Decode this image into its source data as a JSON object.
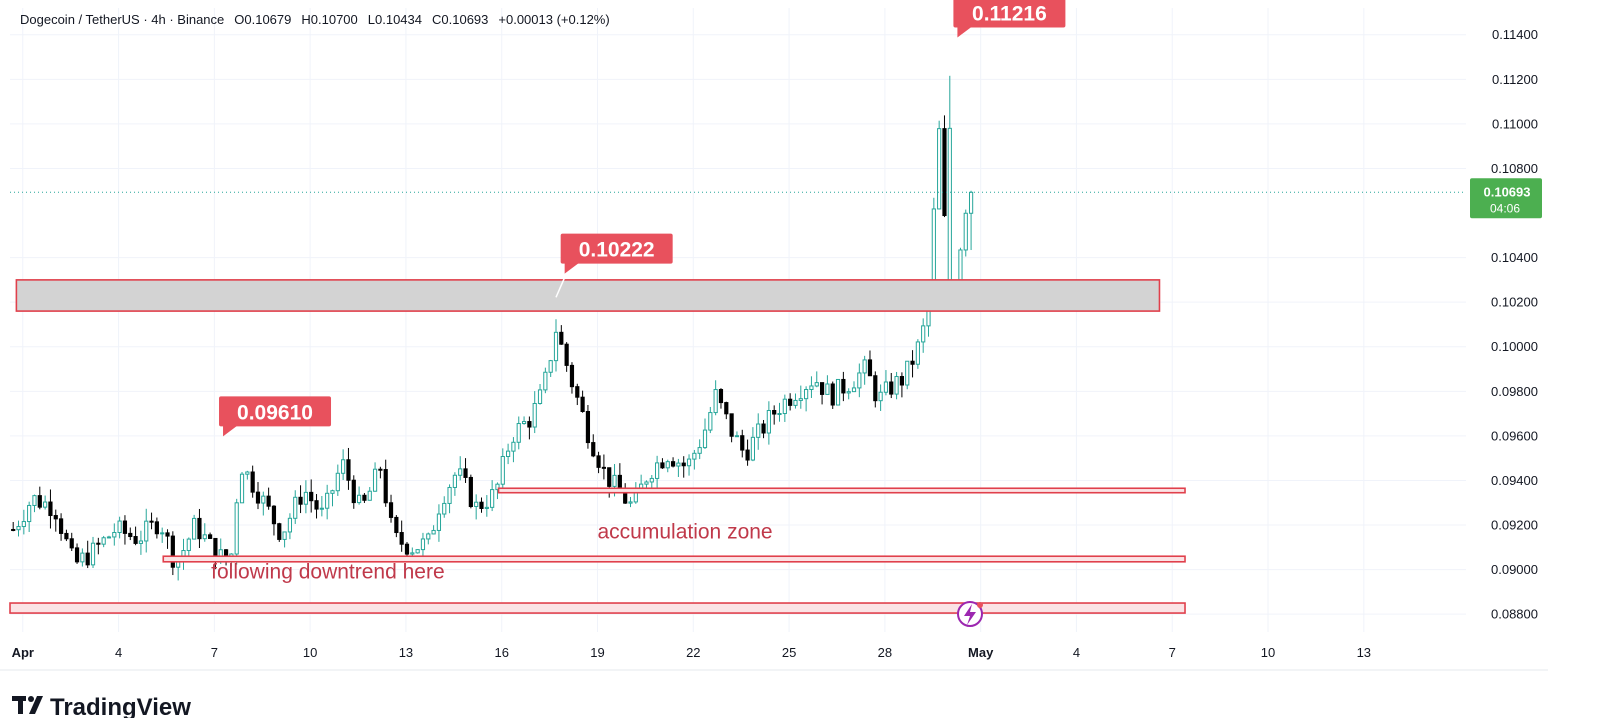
{
  "header": {
    "symbol": "Dogecoin / TetherUS · 4h · Binance",
    "open": "O0.10679",
    "high": "H0.10700",
    "low": "L0.10434",
    "close": "C0.10693",
    "change": "+0.00013 (+0.12%)"
  },
  "logo": {
    "text": "TradingView"
  },
  "price_badge": {
    "price": "0.10693",
    "countdown": "04:06"
  },
  "colors": {
    "up": "#26a69a",
    "down": "#000000",
    "callout": "#e8515d",
    "zone_fill": "#d3d3d3",
    "zone_border": "#e0404c",
    "badge": "#4caf50",
    "text": "#131722",
    "axis_text": "#131722"
  },
  "chart_data": {
    "type": "candlestick",
    "title": "Dogecoin / TetherUS · 4h · Binance",
    "y_ticks": [
      "0.11400",
      "0.11200",
      "0.11000",
      "0.10800",
      "0.10400",
      "0.10200",
      "0.10000",
      "0.09800",
      "0.09600",
      "0.09400",
      "0.09200",
      "0.09000",
      "0.08800"
    ],
    "ylim": [
      0.0872,
      0.1152
    ],
    "x_ticks": [
      {
        "label": "Apr",
        "day": 1
      },
      {
        "label": "4",
        "day": 4
      },
      {
        "label": "7",
        "day": 7
      },
      {
        "label": "10",
        "day": 10
      },
      {
        "label": "13",
        "day": 13
      },
      {
        "label": "16",
        "day": 16
      },
      {
        "label": "19",
        "day": 19
      },
      {
        "label": "22",
        "day": 22
      },
      {
        "label": "25",
        "day": 25
      },
      {
        "label": "28",
        "day": 28
      },
      {
        "label": "May",
        "day": 31
      },
      {
        "label": "4",
        "day": 34
      },
      {
        "label": "7",
        "day": 37
      },
      {
        "label": "10",
        "day": 40
      },
      {
        "label": "13",
        "day": 43
      }
    ],
    "xlim": [
      0.6,
      46.2
    ],
    "grid": true,
    "current_price": 0.10693,
    "candle_path": [
      [
        0.7,
        0.0918
      ],
      [
        1.3,
        0.0932
      ],
      [
        2.0,
        0.0928
      ],
      [
        2.6,
        0.0902
      ],
      [
        3.2,
        0.0908
      ],
      [
        3.9,
        0.0918
      ],
      [
        4.6,
        0.0914
      ],
      [
        5.3,
        0.0922
      ],
      [
        5.8,
        0.0902
      ],
      [
        6.4,
        0.092
      ],
      [
        7.0,
        0.0908
      ],
      [
        7.5,
        0.0902
      ],
      [
        7.8,
        0.0948
      ],
      [
        8.4,
        0.0934
      ],
      [
        9.1,
        0.0916
      ],
      [
        9.8,
        0.0936
      ],
      [
        10.4,
        0.0924
      ],
      [
        11.0,
        0.0948
      ],
      [
        11.6,
        0.0926
      ],
      [
        12.2,
        0.0946
      ],
      [
        12.6,
        0.0914
      ],
      [
        13.2,
        0.091
      ],
      [
        13.7,
        0.0912
      ],
      [
        14.1,
        0.0932
      ],
      [
        14.6,
        0.0944
      ],
      [
        15.2,
        0.0928
      ],
      [
        15.8,
        0.0934
      ],
      [
        16.3,
        0.096
      ],
      [
        16.9,
        0.0968
      ],
      [
        17.3,
        0.098
      ],
      [
        17.7,
        0.1008
      ],
      [
        18.2,
        0.0984
      ],
      [
        18.7,
        0.0962
      ],
      [
        19.2,
        0.0944
      ],
      [
        19.6,
        0.0936
      ],
      [
        20.1,
        0.0928
      ],
      [
        20.6,
        0.0944
      ],
      [
        21.2,
        0.0952
      ],
      [
        21.8,
        0.0946
      ],
      [
        22.3,
        0.096
      ],
      [
        22.7,
        0.0978
      ],
      [
        23.2,
        0.0962
      ],
      [
        23.6,
        0.0952
      ],
      [
        24.1,
        0.0962
      ],
      [
        24.6,
        0.0972
      ],
      [
        25.2,
        0.098
      ],
      [
        25.8,
        0.0986
      ],
      [
        26.3,
        0.0978
      ],
      [
        26.9,
        0.0984
      ],
      [
        27.4,
        0.099
      ],
      [
        27.8,
        0.0976
      ],
      [
        28.2,
        0.0982
      ],
      [
        28.6,
        0.0986
      ],
      [
        29.0,
        0.0998
      ],
      [
        29.3,
        0.1012
      ],
      [
        29.5,
        0.1052
      ],
      [
        29.7,
        0.1096
      ],
      [
        29.9,
        0.1048
      ],
      [
        30.1,
        0.1018
      ],
      [
        30.3,
        0.1038
      ],
      [
        30.5,
        0.1062
      ],
      [
        30.7,
        0.10693
      ]
    ],
    "zones": [
      {
        "kind": "resistance",
        "from_day": 0.8,
        "to_day": 36.6,
        "low": 0.1016,
        "high": 0.103
      },
      {
        "kind": "line",
        "from_day": 15.9,
        "to_day": 37.4,
        "low": 0.09345,
        "high": 0.09365
      },
      {
        "kind": "line",
        "from_day": 5.4,
        "to_day": 37.4,
        "low": 0.09035,
        "high": 0.0906
      },
      {
        "kind": "line",
        "from_day": 0.6,
        "to_day": 37.4,
        "low": 0.08805,
        "high": 0.0885
      }
    ],
    "callouts": [
      {
        "label": "0.09610",
        "day": 8.9,
        "price": 0.0971,
        "tip_day": 8.2,
        "tip_price": 0.09612
      },
      {
        "label": "0.10222",
        "day": 19.6,
        "price": 0.1044,
        "tip_day": 17.7,
        "tip_price": 0.10222
      },
      {
        "label": "0.11216",
        "day": 31.9,
        "price": 0.115,
        "tip_day": 30.0,
        "tip_price": 0.11216
      }
    ],
    "annotations": [
      {
        "text": "accumulation zone",
        "day": 19.0,
        "price": 0.0914
      },
      {
        "text": "following downtrend here",
        "day": 6.9,
        "price": 0.0896
      }
    ]
  }
}
